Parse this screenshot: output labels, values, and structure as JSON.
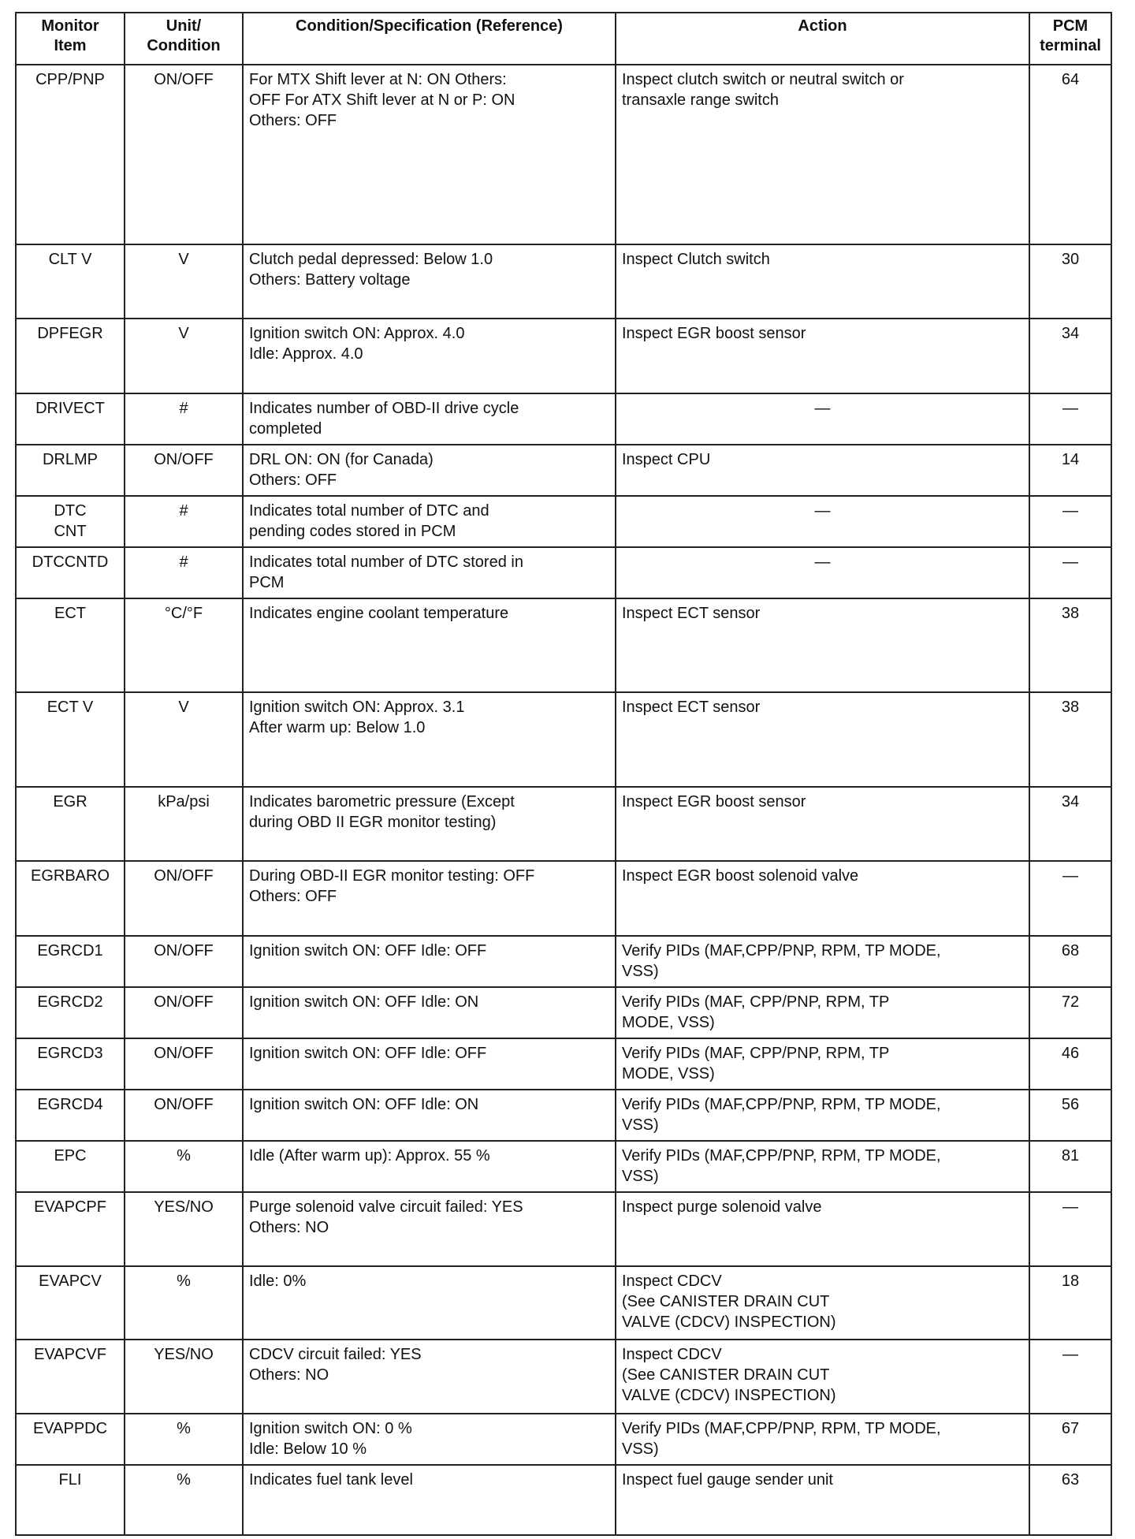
{
  "headers": [
    "Monitor\nItem",
    "Unit/\nCondition",
    "Condition/Specification (Reference)",
    "Action",
    "PCM\nterminal"
  ],
  "rows": [
    {
      "item": "CPP/PNP",
      "unit": "ON/OFF",
      "condition": "For MTX Shift lever at N: ON Others:\nOFF For ATX Shift lever at N or P: ON\nOthers: OFF",
      "action": "Inspect clutch switch or neutral switch or\ntransaxle range switch",
      "terminal": "64"
    },
    {
      "item": "CLT V",
      "unit": "V",
      "condition": "Clutch pedal depressed: Below 1.0\nOthers: Battery voltage",
      "action": "Inspect Clutch switch",
      "terminal": "30"
    },
    {
      "item": "DPFEGR",
      "unit": "V",
      "condition": "Ignition switch ON: Approx. 4.0\nIdle: Approx. 4.0",
      "action": "Inspect EGR boost sensor",
      "terminal": "34"
    },
    {
      "item": "DRIVECT",
      "unit": "#",
      "condition": "Indicates number of OBD-II drive cycle\ncompleted",
      "action": "—",
      "terminal": "—"
    },
    {
      "item": "DRLMP",
      "unit": "ON/OFF",
      "condition": "DRL ON: ON (for Canada)\nOthers: OFF",
      "action": "Inspect CPU",
      "terminal": "14"
    },
    {
      "item": "DTC\nCNT",
      "unit": "#",
      "condition": "Indicates total number of DTC and\npending codes stored in PCM",
      "action": "—",
      "terminal": "—"
    },
    {
      "item": "DTCCNTD",
      "unit": "#",
      "condition": "Indicates total number of DTC stored in\nPCM",
      "action": "—",
      "terminal": "—"
    },
    {
      "item": "ECT",
      "unit": "°C/°F",
      "condition": "Indicates engine coolant temperature",
      "action": "Inspect ECT sensor",
      "terminal": "38"
    },
    {
      "item": "ECT V",
      "unit": "V",
      "condition": "Ignition switch ON: Approx. 3.1\nAfter warm up: Below 1.0",
      "action": "Inspect ECT sensor",
      "terminal": "38"
    },
    {
      "item": "EGR",
      "unit": "kPa/psi",
      "condition": "Indicates barometric pressure (Except\nduring OBD II EGR monitor testing)",
      "action": "Inspect EGR boost sensor",
      "terminal": "34"
    },
    {
      "item": "EGRBARO",
      "unit": "ON/OFF",
      "condition": "During OBD-II EGR monitor testing: OFF\nOthers: OFF",
      "action": "Inspect EGR boost solenoid valve",
      "terminal": "—"
    },
    {
      "item": "EGRCD1",
      "unit": "ON/OFF",
      "condition": "Ignition switch ON: OFF Idle: OFF",
      "action": "Verify PIDs (MAF,CPP/PNP, RPM, TP MODE,\nVSS)",
      "terminal": "68"
    },
    {
      "item": "EGRCD2",
      "unit": "ON/OFF",
      "condition": "Ignition switch ON: OFF Idle: ON",
      "action": "Verify PIDs (MAF, CPP/PNP, RPM, TP\nMODE, VSS)",
      "terminal": "72"
    },
    {
      "item": "EGRCD3",
      "unit": "ON/OFF",
      "condition": "Ignition switch ON: OFF Idle: OFF",
      "action": "Verify PIDs (MAF, CPP/PNP, RPM, TP\nMODE, VSS)",
      "terminal": "46"
    },
    {
      "item": "EGRCD4",
      "unit": "ON/OFF",
      "condition": "Ignition switch ON: OFF Idle: ON",
      "action": "Verify PIDs (MAF,CPP/PNP, RPM, TP MODE,\nVSS)",
      "terminal": "56"
    },
    {
      "item": "EPC",
      "unit": "%",
      "condition": "Idle (After warm up): Approx. 55 %",
      "action": "Verify PIDs (MAF,CPP/PNP, RPM, TP MODE,\nVSS)",
      "terminal": "81"
    },
    {
      "item": "EVAPCPF",
      "unit": "YES/NO",
      "condition": "Purge solenoid valve circuit failed: YES\nOthers: NO",
      "action": "Inspect purge solenoid valve",
      "terminal": "—"
    },
    {
      "item": "EVAPCV",
      "unit": "%",
      "condition": "Idle: 0%",
      "action": "Inspect CDCV\n (See CANISTER DRAIN CUT\nVALVE (CDCV) INSPECTION)",
      "terminal": "18"
    },
    {
      "item": "EVAPCVF",
      "unit": "YES/NO",
      "condition": "CDCV circuit failed: YES\nOthers: NO",
      "action": "Inspect CDCV\n(See CANISTER DRAIN CUT\nVALVE (CDCV) INSPECTION)",
      "terminal": "—"
    },
    {
      "item": "EVAPPDC",
      "unit": "%",
      "condition": "Ignition switch ON: 0 %\nIdle: Below 10 %",
      "action": "Verify PIDs (MAF,CPP/PNP, RPM, TP MODE,\nVSS)",
      "terminal": "67"
    },
    {
      "item": "FLI",
      "unit": "%",
      "condition": "Indicates fuel tank level",
      "action": "Inspect fuel gauge sender unit",
      "terminal": "63"
    }
  ]
}
